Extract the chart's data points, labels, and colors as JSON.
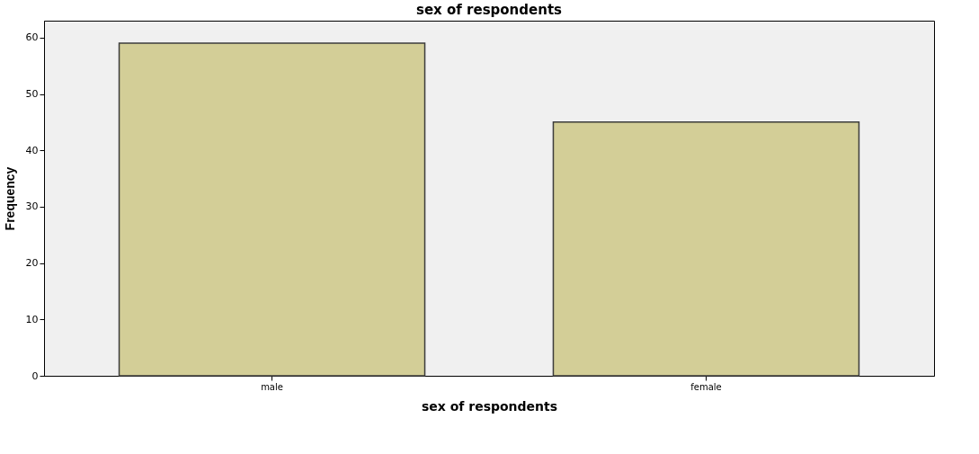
{
  "chart_data": {
    "type": "bar",
    "title": "sex of respondents",
    "xlabel": "sex of respondents",
    "ylabel": "Frequency",
    "categories": [
      "male",
      "female"
    ],
    "values": [
      59,
      45
    ],
    "color": "#d3ce97",
    "ylim": [
      0,
      63
    ],
    "yticks": [
      0,
      10,
      20,
      30,
      40,
      50,
      60
    ],
    "grid": false
  }
}
